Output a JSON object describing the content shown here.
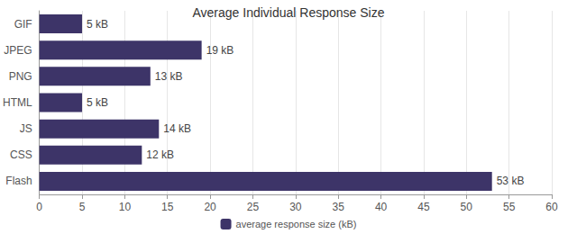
{
  "chart_data": {
    "type": "bar",
    "orientation": "horizontal",
    "title": "Average Individual Response Size",
    "categories": [
      "GIF",
      "JPEG",
      "PNG",
      "HTML",
      "JS",
      "CSS",
      "Flash"
    ],
    "series": [
      {
        "name": "average response size (kB)",
        "color": "#3d3468",
        "values": [
          5,
          19,
          13,
          5,
          14,
          12,
          53
        ],
        "value_labels": [
          "5 kB",
          "19 kB",
          "13 kB",
          "5 kB",
          "14 kB",
          "12 kB",
          "53 kB"
        ]
      }
    ],
    "xlim": [
      0,
      60
    ],
    "xticks": [
      0,
      5,
      10,
      15,
      20,
      25,
      30,
      35,
      40,
      45,
      50,
      55,
      60
    ],
    "grid": true,
    "legend": "bottom",
    "data_labels": true
  }
}
